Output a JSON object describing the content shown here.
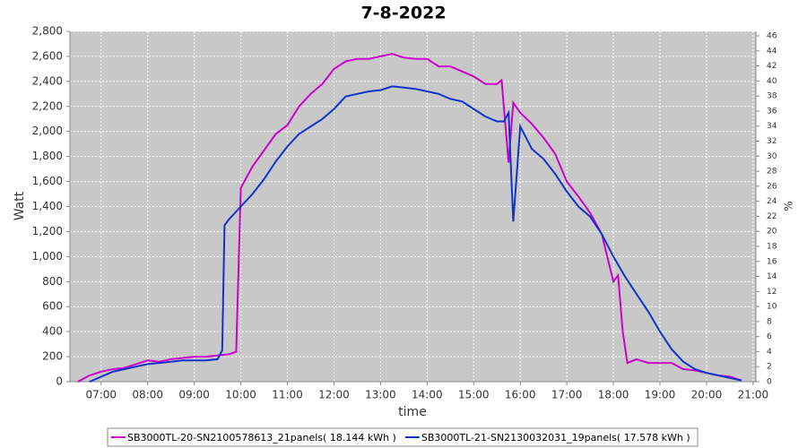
{
  "chart_data": {
    "type": "line",
    "title": "7-8-2022",
    "x_label": "time",
    "y_label": "Watt",
    "y2_label": "%",
    "xlim": [
      6.33,
      21.06
    ],
    "xticks": [
      {
        "value": 7,
        "label": "07:00"
      },
      {
        "value": 8,
        "label": "08:00"
      },
      {
        "value": 9,
        "label": "09:00"
      },
      {
        "value": 10,
        "label": "10:00"
      },
      {
        "value": 11,
        "label": "11:00"
      },
      {
        "value": 12,
        "label": "12:00"
      },
      {
        "value": 13,
        "label": "13:00"
      },
      {
        "value": 14,
        "label": "14:00"
      },
      {
        "value": 15,
        "label": "15:00"
      },
      {
        "value": 16,
        "label": "16:00"
      },
      {
        "value": 17,
        "label": "17:00"
      },
      {
        "value": 18,
        "label": "18:00"
      },
      {
        "value": 19,
        "label": "19:00"
      },
      {
        "value": 20,
        "label": "20:00"
      },
      {
        "value": 21,
        "label": "21:00"
      }
    ],
    "ylim": [
      0,
      2800
    ],
    "yticks": [
      0,
      200,
      400,
      600,
      800,
      {
        "value": 1000,
        "label": "1,000"
      },
      {
        "value": 1200,
        "label": "1,200"
      },
      {
        "value": 1400,
        "label": "1,400"
      },
      {
        "value": 1600,
        "label": "1,600"
      },
      {
        "value": 1800,
        "label": "1,800"
      },
      {
        "value": 2000,
        "label": "2,000"
      },
      {
        "value": 2200,
        "label": "2,200"
      },
      {
        "value": 2400,
        "label": "2,400"
      },
      {
        "value": 2600,
        "label": "2,600"
      },
      {
        "value": 2800,
        "label": "2,800"
      }
    ],
    "y2lim": [
      0,
      46.6
    ],
    "y2ticks": [
      0,
      2,
      4,
      6,
      8,
      10,
      12,
      14,
      16,
      18,
      20,
      22,
      24,
      26,
      28,
      30,
      32,
      34,
      36,
      38,
      40,
      42,
      44,
      46
    ],
    "grid": true,
    "legend": "bottom",
    "series": [
      {
        "name": "SB3000TL-20-SN2100578613_21panels( 18.144 kWh )",
        "color": "#cc00cc",
        "x": [
          6.5,
          6.75,
          7,
          7.25,
          7.5,
          7.75,
          8,
          8.25,
          8.5,
          8.75,
          9,
          9.25,
          9.5,
          9.75,
          9.9,
          10,
          10.25,
          10.5,
          10.75,
          11,
          11.25,
          11.5,
          11.75,
          12,
          12.25,
          12.5,
          12.75,
          13,
          13.25,
          13.5,
          13.75,
          14,
          14.25,
          14.5,
          14.75,
          15,
          15.25,
          15.5,
          15.6,
          15.75,
          15.85,
          16,
          16.25,
          16.5,
          16.75,
          17,
          17.25,
          17.5,
          17.75,
          17.9,
          18,
          18.1,
          18.2,
          18.3,
          18.5,
          18.75,
          19,
          19.25,
          19.5,
          19.75,
          20,
          20.25,
          20.5,
          20.75
        ],
        "values": [
          0,
          50,
          80,
          100,
          110,
          140,
          170,
          160,
          180,
          190,
          200,
          200,
          210,
          220,
          240,
          1550,
          1720,
          1850,
          1980,
          2050,
          2200,
          2300,
          2380,
          2500,
          2560,
          2580,
          2580,
          2600,
          2620,
          2590,
          2580,
          2580,
          2520,
          2520,
          2480,
          2440,
          2380,
          2380,
          2410,
          1750,
          2230,
          2150,
          2060,
          1950,
          1820,
          1600,
          1480,
          1350,
          1180,
          950,
          800,
          850,
          400,
          150,
          180,
          150,
          150,
          150,
          100,
          90,
          70,
          50,
          40,
          10
        ]
      },
      {
        "name": "SB3000TL-21-SN2130032031_19panels( 17.578 kWh )",
        "color": "#1133cc",
        "x": [
          6.75,
          7,
          7.25,
          7.5,
          7.75,
          8,
          8.25,
          8.5,
          8.75,
          9,
          9.25,
          9.5,
          9.6,
          9.65,
          9.75,
          10,
          10.25,
          10.5,
          10.75,
          11,
          11.25,
          11.5,
          11.75,
          12,
          12.25,
          12.5,
          12.75,
          13,
          13.25,
          13.5,
          13.75,
          14,
          14.25,
          14.5,
          14.75,
          15,
          15.25,
          15.5,
          15.65,
          15.75,
          15.85,
          16,
          16.25,
          16.5,
          16.75,
          17,
          17.25,
          17.5,
          17.75,
          18,
          18.25,
          18.5,
          18.75,
          19,
          19.25,
          19.5,
          19.75,
          20,
          20.25,
          20.5,
          20.75
        ],
        "values": [
          0,
          40,
          80,
          100,
          120,
          140,
          150,
          160,
          170,
          170,
          170,
          180,
          250,
          1250,
          1300,
          1400,
          1500,
          1620,
          1760,
          1880,
          1980,
          2040,
          2100,
          2180,
          2280,
          2300,
          2320,
          2330,
          2360,
          2350,
          2340,
          2320,
          2300,
          2260,
          2240,
          2180,
          2120,
          2080,
          2080,
          2150,
          1280,
          2040,
          1860,
          1780,
          1660,
          1520,
          1400,
          1320,
          1180,
          1000,
          840,
          700,
          560,
          400,
          260,
          160,
          100,
          70,
          50,
          30,
          10
        ]
      }
    ]
  }
}
